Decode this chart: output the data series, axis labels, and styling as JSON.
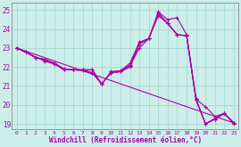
{
  "xlabel": "Windchill (Refroidissement éolien,°C)",
  "background_color": "#cceee8",
  "line_color": "#aa00aa",
  "xlim": [
    -0.5,
    23.5
  ],
  "ylim": [
    18.7,
    25.4
  ],
  "yticks": [
    19,
    20,
    21,
    22,
    23,
    24,
    25
  ],
  "xticks": [
    0,
    1,
    2,
    3,
    4,
    5,
    6,
    7,
    8,
    9,
    10,
    11,
    12,
    13,
    14,
    15,
    16,
    17,
    18,
    19,
    20,
    21,
    22,
    23
  ],
  "lines": [
    {
      "x": [
        0,
        1,
        2,
        3,
        4,
        5,
        6,
        7,
        8,
        9,
        10,
        11,
        12,
        13,
        14,
        15,
        16,
        17,
        18,
        19,
        20,
        21,
        22,
        23
      ],
      "y": [
        23.0,
        22.8,
        22.5,
        22.4,
        22.2,
        21.9,
        21.85,
        21.85,
        21.85,
        21.1,
        21.75,
        21.8,
        22.2,
        23.3,
        23.5,
        24.9,
        24.5,
        24.6,
        23.7,
        20.3,
        19.9,
        19.4,
        19.55,
        19.0
      ]
    },
    {
      "x": [
        0,
        1,
        2,
        3,
        4,
        5,
        6,
        7,
        8,
        9,
        10,
        11,
        12,
        13,
        14,
        15,
        16,
        17,
        18,
        19,
        20,
        21,
        22,
        23
      ],
      "y": [
        23.0,
        22.8,
        22.5,
        22.4,
        22.2,
        21.9,
        21.85,
        21.85,
        21.85,
        21.1,
        21.75,
        21.8,
        22.1,
        23.3,
        23.5,
        24.85,
        24.3,
        23.7,
        23.65,
        20.3,
        19.0,
        19.3,
        19.55,
        19.05
      ]
    },
    {
      "x": [
        0,
        2,
        3,
        4,
        5,
        6,
        7,
        8,
        9,
        10,
        11,
        12,
        13,
        14,
        15,
        16,
        17,
        18,
        19,
        20,
        21,
        22,
        23
      ],
      "y": [
        23.0,
        22.5,
        22.35,
        22.2,
        21.85,
        21.85,
        21.8,
        21.7,
        21.1,
        21.7,
        21.75,
        22.0,
        23.2,
        23.5,
        24.8,
        24.3,
        23.7,
        23.65,
        20.25,
        19.0,
        19.25,
        19.55,
        19.05
      ]
    },
    {
      "x": [
        0,
        3,
        4,
        5,
        6,
        7,
        8,
        9,
        10,
        11,
        12,
        13,
        14,
        15,
        16,
        17,
        18,
        19,
        20,
        21,
        22,
        23
      ],
      "y": [
        23.0,
        22.3,
        22.15,
        21.85,
        21.85,
        21.85,
        21.7,
        21.1,
        21.7,
        21.75,
        22.05,
        23.0,
        23.5,
        24.7,
        24.3,
        23.7,
        23.65,
        20.3,
        19.0,
        19.25,
        19.55,
        19.05
      ]
    },
    {
      "x": [
        0,
        23
      ],
      "y": [
        23.0,
        19.05
      ]
    }
  ]
}
